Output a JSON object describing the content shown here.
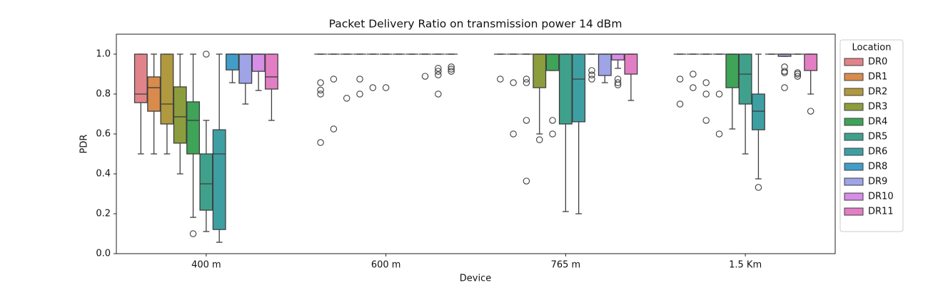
{
  "chart_data": {
    "type": "box",
    "title": "Packet Delivery Ratio on transmission power 14 dBm",
    "x_label": "Device",
    "y_label": "PDR",
    "categories": [
      "400 m",
      "600 m",
      "765 m",
      "1.5 Km"
    ],
    "ylim": [
      0,
      1.1
    ],
    "yticks": [
      {
        "value": 0,
        "label": "0.0"
      },
      0.2,
      0.4,
      0.6,
      0.8,
      {
        "value": 1,
        "label": "1.0"
      }
    ],
    "legend_title": "Location",
    "legend_position": "outside right",
    "series": [
      {
        "name": "DR0",
        "color": "#e1838a",
        "whislo": [
          0.5,
          1,
          1,
          1
        ],
        "q1": [
          0.757,
          1,
          1,
          1
        ],
        "med": [
          0.8,
          1,
          1,
          1
        ],
        "q3": [
          1,
          1,
          1,
          1
        ],
        "whishi": [
          1,
          1,
          1,
          1
        ],
        "fliers": [
          [],
          [
            0.857,
            0.82,
            0.8,
            0.557
          ],
          [
            0.875
          ],
          [
            0.875,
            0.75
          ]
        ]
      },
      {
        "name": "DR1",
        "color": "#d98b4c",
        "whislo": [
          0.5,
          1,
          1,
          1
        ],
        "q1": [
          0.714,
          1,
          1,
          1
        ],
        "med": [
          0.832,
          1,
          1,
          1
        ],
        "q3": [
          0.886,
          1,
          1,
          1
        ],
        "whishi": [
          1,
          1,
          1,
          1
        ],
        "fliers": [
          [],
          [
            0.875,
            0.625
          ],
          [
            0.857,
            0.6
          ],
          [
            0.9,
            0.832
          ]
        ]
      },
      {
        "name": "DR2",
        "color": "#b0993e",
        "whislo": [
          0.5,
          1,
          1,
          1
        ],
        "q1": [
          0.65,
          1,
          1,
          1
        ],
        "med": [
          0.75,
          1,
          1,
          1
        ],
        "q3": [
          1,
          1,
          1,
          1
        ],
        "whishi": [
          1,
          1,
          1,
          1
        ],
        "fliers": [
          [],
          [
            0.779
          ],
          [
            0.875,
            0.857,
            0.668,
            0.364
          ],
          [
            0.857,
            0.8,
            0.668
          ]
        ]
      },
      {
        "name": "DR3",
        "color": "#8c9d3d",
        "whislo": [
          0.4,
          1,
          0.6,
          1
        ],
        "q1": [
          0.554,
          1,
          0.832,
          1
        ],
        "med": [
          0.686,
          1,
          1,
          1
        ],
        "q3": [
          0.836,
          1,
          1,
          1
        ],
        "whishi": [
          1,
          1,
          1,
          1
        ],
        "fliers": [
          [],
          [
            0.875,
            0.8
          ],
          [
            0.571
          ],
          [
            0.8,
            0.6
          ]
        ]
      },
      {
        "name": "DR4",
        "color": "#3fa358",
        "whislo": [
          0.182,
          1,
          0.918,
          0.625
        ],
        "q1": [
          0.5,
          1,
          0.918,
          0.832
        ],
        "med": [
          0.668,
          1,
          1,
          1
        ],
        "q3": [
          0.761,
          1,
          1,
          1
        ],
        "whishi": [
          1,
          1,
          1,
          1
        ],
        "fliers": [
          [
            0.1
          ],
          [
            0.832
          ],
          [
            0.668,
            0.6
          ],
          []
        ]
      },
      {
        "name": "DR5",
        "color": "#3fa18b",
        "whislo": [
          0.111,
          1,
          0.211,
          0.5
        ],
        "q1": [
          0.218,
          1,
          0.65,
          0.75
        ],
        "med": [
          0.35,
          1,
          1,
          0.9
        ],
        "q3": [
          0.5,
          1,
          1,
          1
        ],
        "whishi": [
          0.668,
          1,
          1,
          1
        ],
        "fliers": [
          [
            1
          ],
          [
            0.832
          ],
          [],
          []
        ]
      },
      {
        "name": "DR6",
        "color": "#3e9fa3",
        "whislo": [
          0.057,
          1,
          0.2,
          0.375
        ],
        "q1": [
          0.121,
          1,
          0.661,
          0.621
        ],
        "med": [
          0.5,
          1,
          0.875,
          0.714
        ],
        "q3": [
          0.621,
          1,
          1,
          0.8
        ],
        "whishi": [
          1,
          1,
          1,
          1
        ],
        "fliers": [
          [],
          [],
          [],
          [
            0.332
          ]
        ]
      },
      {
        "name": "DR8",
        "color": "#429dc9",
        "whislo": [
          0.857,
          1,
          1,
          1
        ],
        "q1": [
          0.921,
          1,
          1,
          1
        ],
        "med": [
          1,
          1,
          1,
          1
        ],
        "q3": [
          1,
          1,
          1,
          1
        ],
        "whishi": [
          1,
          1,
          1,
          1
        ],
        "fliers": [
          [],
          [],
          [
            0.918,
            0.896,
            0.875
          ],
          []
        ]
      },
      {
        "name": "DR9",
        "color": "#9ea4e6",
        "whislo": [
          0.75,
          1,
          0.857,
          0.989
        ],
        "q1": [
          0.854,
          1,
          0.893,
          0.989
        ],
        "med": [
          1,
          1,
          1,
          1
        ],
        "q3": [
          1,
          1,
          1,
          1
        ],
        "whishi": [
          1,
          1,
          1,
          1
        ],
        "fliers": [
          [],
          [
            0.889
          ],
          [],
          [
            0.936,
            0.914,
            0.907,
            0.832
          ]
        ]
      },
      {
        "name": "DR10",
        "color": "#d68ee6",
        "whislo": [
          0.818,
          1,
          0.929,
          1
        ],
        "q1": [
          0.914,
          1,
          0.971,
          1
        ],
        "med": [
          1,
          1,
          1,
          1
        ],
        "q3": [
          1,
          1,
          1,
          1
        ],
        "whishi": [
          1,
          1,
          1,
          1
        ],
        "fliers": [
          [],
          [
            0.929,
            0.914,
            0.896,
            0.8
          ],
          [
            0.875,
            0.857,
            0.846
          ],
          [
            0.907,
            0.9,
            0.889
          ]
        ]
      },
      {
        "name": "DR11",
        "color": "#e27ec4",
        "whislo": [
          0.668,
          1,
          0.768,
          0.8
        ],
        "q1": [
          0.825,
          1,
          0.9,
          0.918
        ],
        "med": [
          0.886,
          1,
          1,
          1
        ],
        "q3": [
          1,
          1,
          1,
          1
        ],
        "whishi": [
          1,
          1,
          1,
          1
        ],
        "fliers": [
          [],
          [
            0.936,
            0.925,
            0.914
          ],
          [],
          [
            0.714
          ]
        ]
      }
    ]
  }
}
